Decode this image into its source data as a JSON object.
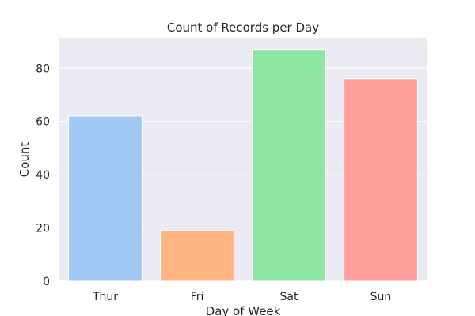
{
  "chart_data": {
    "type": "bar",
    "title": "Count of Records per Day",
    "xlabel": "Day of Week",
    "ylabel": "Count",
    "categories": [
      "Thur",
      "Fri",
      "Sat",
      "Sun"
    ],
    "values": [
      62,
      19,
      87,
      76
    ],
    "ylim": [
      0,
      91.35
    ],
    "yticks": [
      0,
      20,
      40,
      60,
      80
    ],
    "grid": true,
    "colors": [
      "#a1c9f4",
      "#ffb482",
      "#8de5a1",
      "#ff9f9b"
    ],
    "background": "#eaeaf2",
    "grid_color": "#ffffff"
  }
}
